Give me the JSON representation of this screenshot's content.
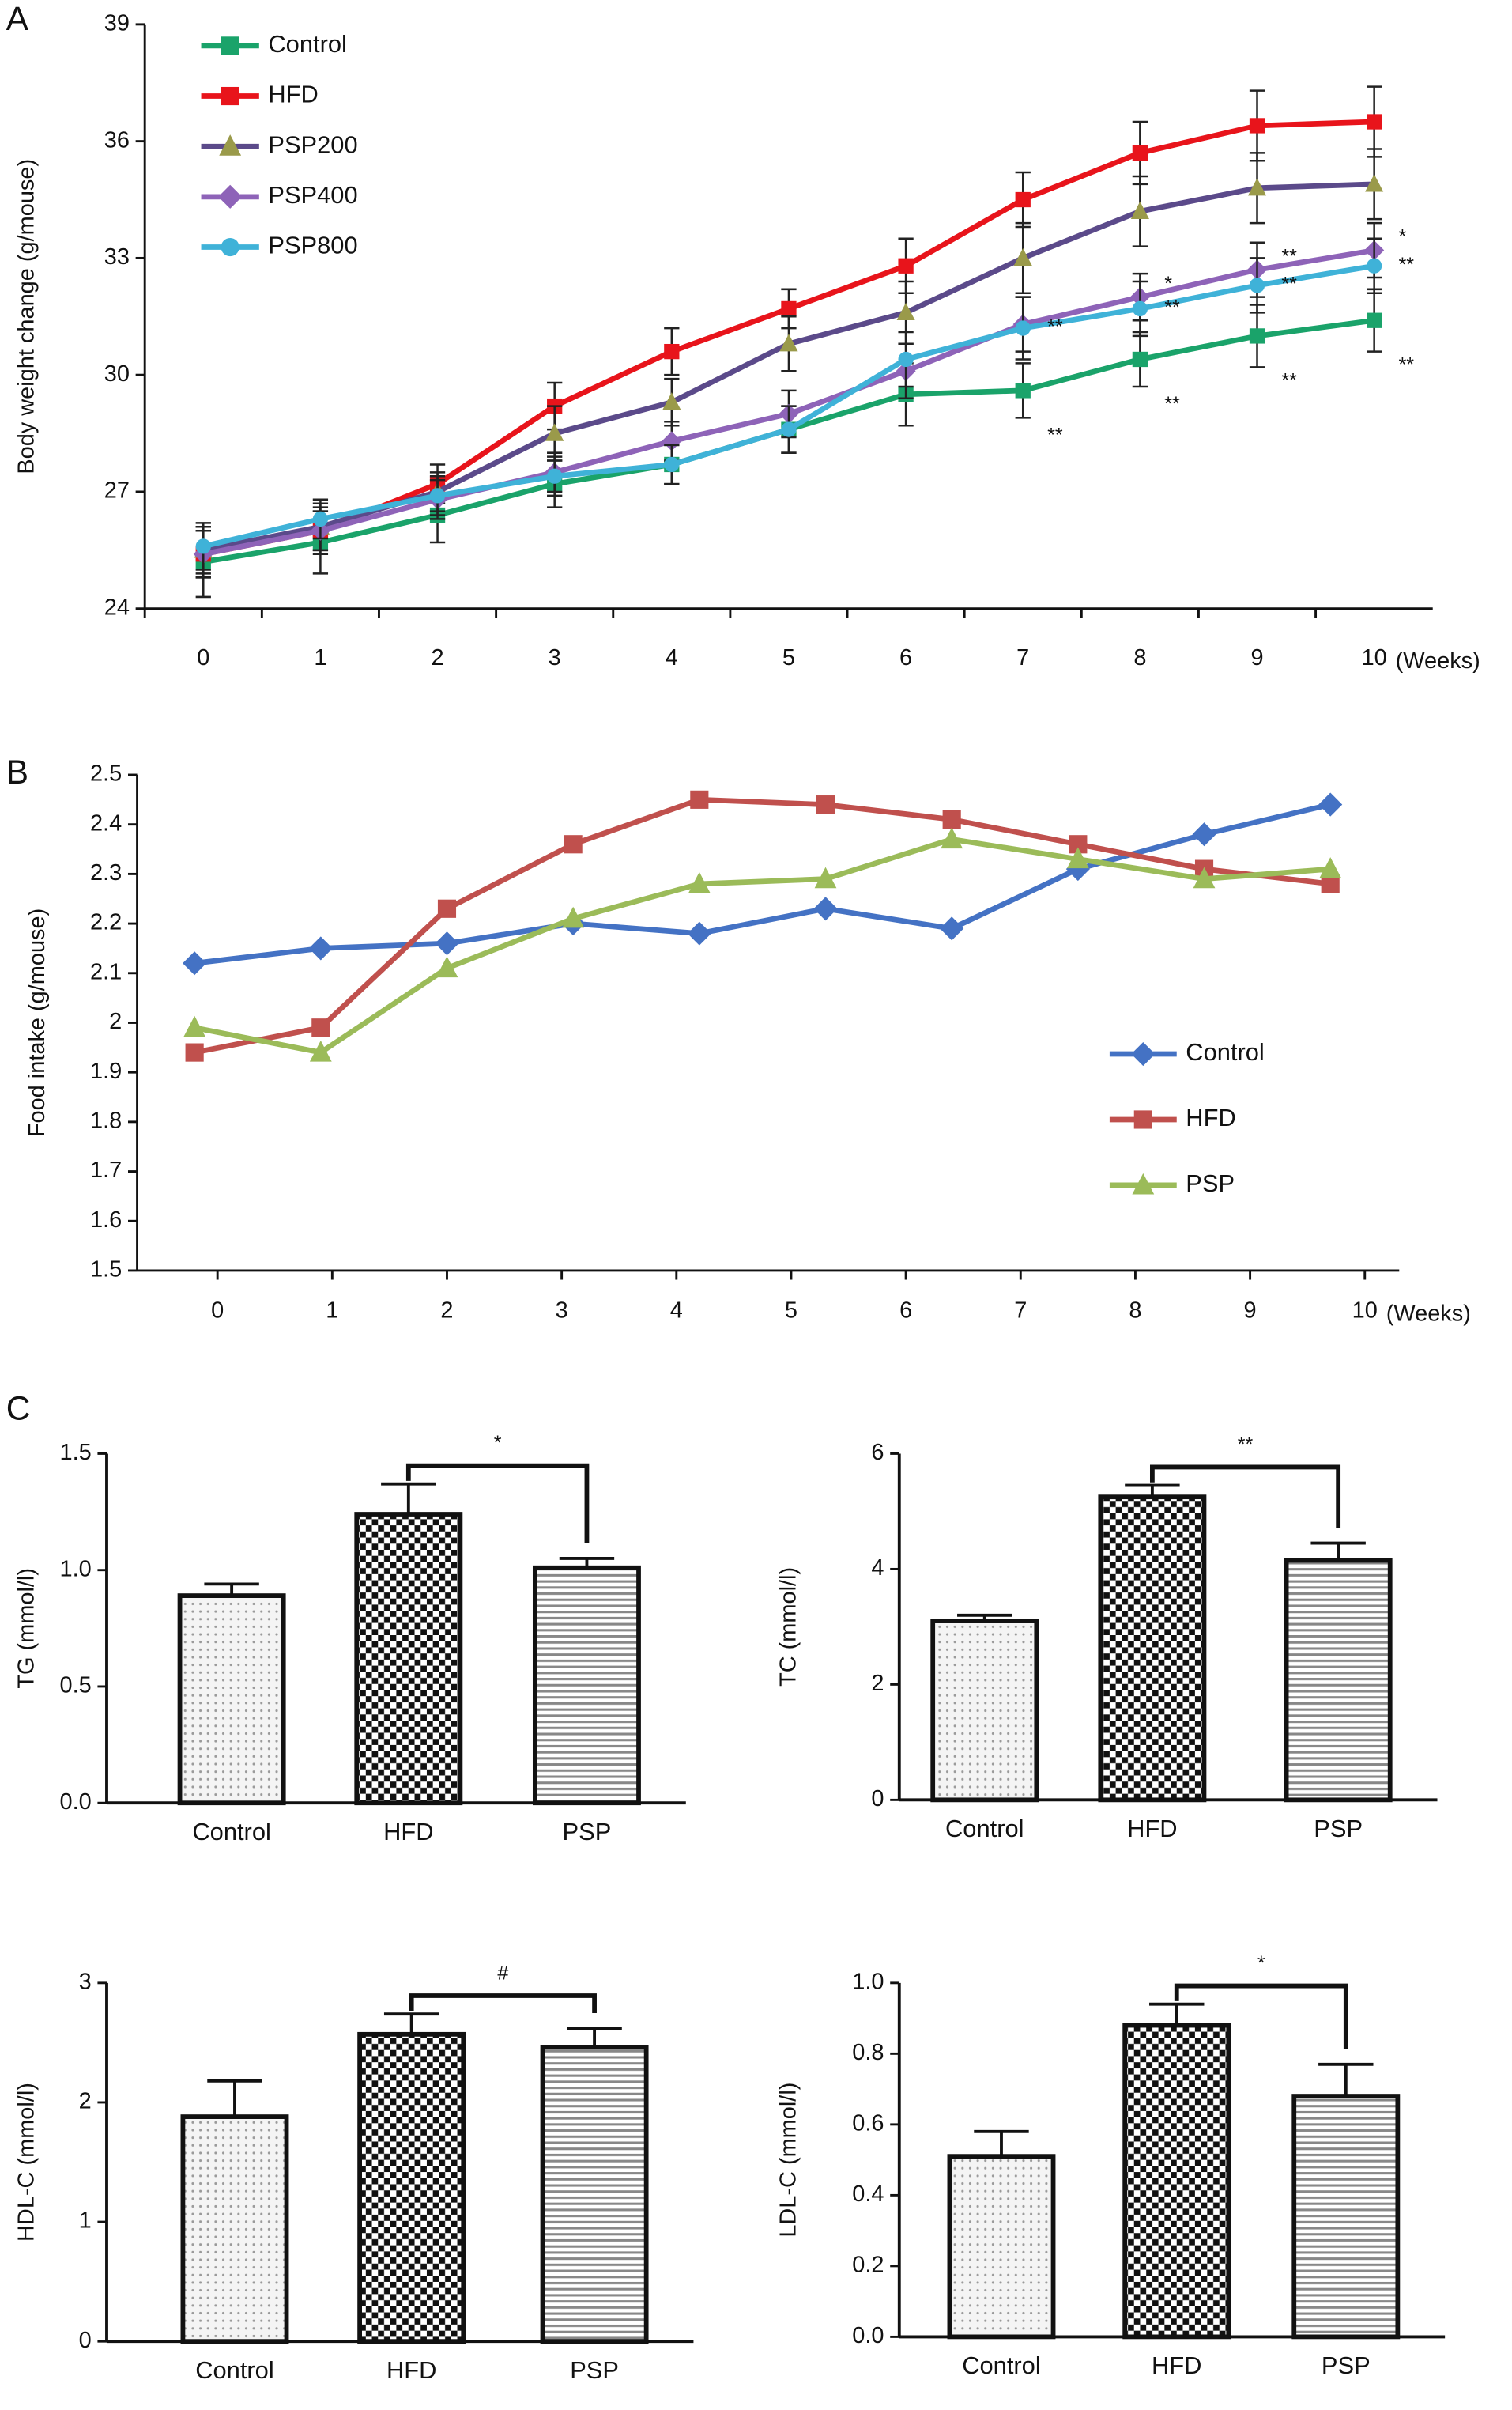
{
  "chart_data": [
    {
      "type": "line",
      "panel": "A",
      "y_label": "Body weight change (g/mouse)",
      "x_label": "(Weeks)",
      "categories": [
        "0",
        "1",
        "2",
        "3",
        "4",
        "5",
        "6",
        "7",
        "8",
        "9",
        "10"
      ],
      "ylim": [
        24,
        39
      ],
      "yticks": [
        24,
        27,
        30,
        33,
        36,
        39
      ],
      "series": [
        {
          "name": "Control",
          "color": "#1aa36a",
          "marker": "square",
          "marker_color": "#1aa36a",
          "values": [
            25.2,
            25.7,
            26.4,
            27.2,
            27.7,
            28.6,
            29.5,
            29.6,
            30.4,
            31.0,
            31.4
          ],
          "errors": [
            0.9,
            0.8,
            0.7,
            0.6,
            0.5,
            0.6,
            0.8,
            0.7,
            0.7,
            0.8,
            0.8
          ],
          "significance": [
            null,
            null,
            null,
            null,
            null,
            null,
            null,
            "**",
            "**",
            "**",
            "**"
          ]
        },
        {
          "name": "HFD",
          "color": "#e8141b",
          "marker": "square",
          "marker_color": "#e8141b",
          "values": [
            25.4,
            26.0,
            27.2,
            29.2,
            30.6,
            31.7,
            32.8,
            34.5,
            35.7,
            36.4,
            36.5
          ],
          "errors": [
            0.6,
            0.6,
            0.5,
            0.6,
            0.6,
            0.5,
            0.7,
            0.7,
            0.8,
            0.9,
            0.9
          ]
        },
        {
          "name": "PSP200",
          "color": "#5b4a8a",
          "marker": "triangle",
          "marker_color": "#9a9a4a",
          "values": [
            25.5,
            26.1,
            27.0,
            28.5,
            29.3,
            30.8,
            31.6,
            33.0,
            34.2,
            34.8,
            34.9
          ],
          "errors": [
            0.6,
            0.6,
            0.5,
            0.7,
            0.6,
            0.7,
            0.8,
            0.9,
            0.9,
            0.9,
            0.9
          ]
        },
        {
          "name": "PSP400",
          "color": "#8e63b8",
          "marker": "diamond",
          "marker_color": "#8e63b8",
          "values": [
            25.4,
            26.0,
            26.8,
            27.5,
            28.3,
            29.0,
            30.1,
            31.3,
            32.0,
            32.7,
            33.2
          ],
          "errors": [
            0.6,
            0.5,
            0.5,
            0.5,
            0.5,
            0.6,
            0.7,
            0.7,
            0.6,
            0.7,
            0.7
          ],
          "significance": [
            null,
            null,
            null,
            null,
            null,
            null,
            null,
            null,
            "*",
            "**",
            "*"
          ]
        },
        {
          "name": "PSP800",
          "color": "#3fb2d8",
          "marker": "circle",
          "marker_color": "#3fb2d8",
          "values": [
            25.6,
            26.3,
            26.9,
            27.4,
            27.7,
            28.6,
            30.4,
            31.2,
            31.7,
            32.3,
            32.8
          ],
          "errors": [
            0.6,
            0.5,
            0.5,
            0.5,
            0.5,
            0.6,
            0.7,
            0.8,
            0.7,
            0.7,
            0.7
          ],
          "significance": [
            null,
            null,
            null,
            null,
            null,
            null,
            null,
            "**",
            "**",
            "**",
            "**"
          ]
        }
      ]
    },
    {
      "type": "line",
      "panel": "B",
      "y_label": "Food intake (g/mouse)",
      "x_label": "(Weeks)",
      "x": [
        -0.2,
        0.9,
        2,
        3.1,
        4.2,
        5.3,
        6.4,
        7.5,
        8.6,
        9.7
      ],
      "xlim": [
        -0.7,
        10.3
      ],
      "xticks": [
        0,
        1,
        2,
        3,
        4,
        5,
        6,
        7,
        8,
        9,
        10
      ],
      "ylim": [
        1.5,
        2.5
      ],
      "yticks": [
        1.5,
        1.6,
        1.7,
        1.8,
        1.9,
        2,
        2.1,
        2.2,
        2.3,
        2.4,
        2.5
      ],
      "series": [
        {
          "name": "Control",
          "color": "#4472c4",
          "marker": "diamond",
          "marker_color": "#4472c4",
          "values": [
            2.12,
            2.15,
            2.16,
            2.2,
            2.18,
            2.23,
            2.19,
            2.31,
            2.38,
            2.44
          ]
        },
        {
          "name": "HFD",
          "color": "#c0504d",
          "marker": "square",
          "marker_color": "#c0504d",
          "values": [
            1.94,
            1.99,
            2.23,
            2.36,
            2.45,
            2.44,
            2.41,
            2.36,
            2.31,
            2.28
          ]
        },
        {
          "name": "PSP",
          "color": "#9bbb59",
          "marker": "triangle",
          "marker_color": "#9bbb59",
          "values": [
            1.99,
            1.94,
            2.11,
            2.21,
            2.28,
            2.29,
            2.37,
            2.33,
            2.29,
            2.31
          ]
        }
      ]
    },
    {
      "type": "bar",
      "panel": "C",
      "y_label": "TG (mmol/l)",
      "categories": [
        "Control",
        "HFD",
        "PSP"
      ],
      "values": [
        0.89,
        1.24,
        1.01
      ],
      "errors": [
        0.05,
        0.13,
        0.04
      ],
      "significance": "*",
      "ylim": [
        0,
        1.5
      ],
      "yticks": [
        {
          "value": 0,
          "label": "0.0"
        },
        {
          "value": 0.5,
          "label": "0.5"
        },
        {
          "value": 1,
          "label": "1.0"
        },
        {
          "value": 1.5,
          "label": "1.5"
        }
      ]
    },
    {
      "type": "bar",
      "y_label": "TC (mmol/l)",
      "categories": [
        "Control",
        "HFD",
        "PSP"
      ],
      "values": [
        3.1,
        5.25,
        4.15
      ],
      "errors": [
        0.1,
        0.2,
        0.3
      ],
      "significance": "**",
      "ylim": [
        0,
        6
      ],
      "yticks": [
        0,
        2,
        4,
        6
      ]
    },
    {
      "type": "bar",
      "y_label": "HDL-C (mmol/l)",
      "categories": [
        "Control",
        "HFD",
        "PSP"
      ],
      "values": [
        1.88,
        2.57,
        2.46
      ],
      "errors": [
        0.3,
        0.17,
        0.16
      ],
      "significance": "#",
      "ylim": [
        0,
        3
      ],
      "yticks": [
        0,
        1,
        2,
        3
      ]
    },
    {
      "type": "bar",
      "y_label": "LDL-C (mmol/l)",
      "categories": [
        "Control",
        "HFD",
        "PSP"
      ],
      "values": [
        0.51,
        0.88,
        0.68
      ],
      "errors": [
        0.07,
        0.06,
        0.09
      ],
      "significance": "*",
      "ylim": [
        0,
        1
      ],
      "yticks": [
        {
          "value": 0,
          "label": "0.0"
        },
        {
          "value": 0.2,
          "label": "0.2"
        },
        {
          "value": 0.4,
          "label": "0.4"
        },
        {
          "value": 0.6,
          "label": "0.6"
        },
        {
          "value": 0.8,
          "label": "0.8"
        },
        {
          "value": 1,
          "label": "1.0"
        }
      ]
    }
  ]
}
